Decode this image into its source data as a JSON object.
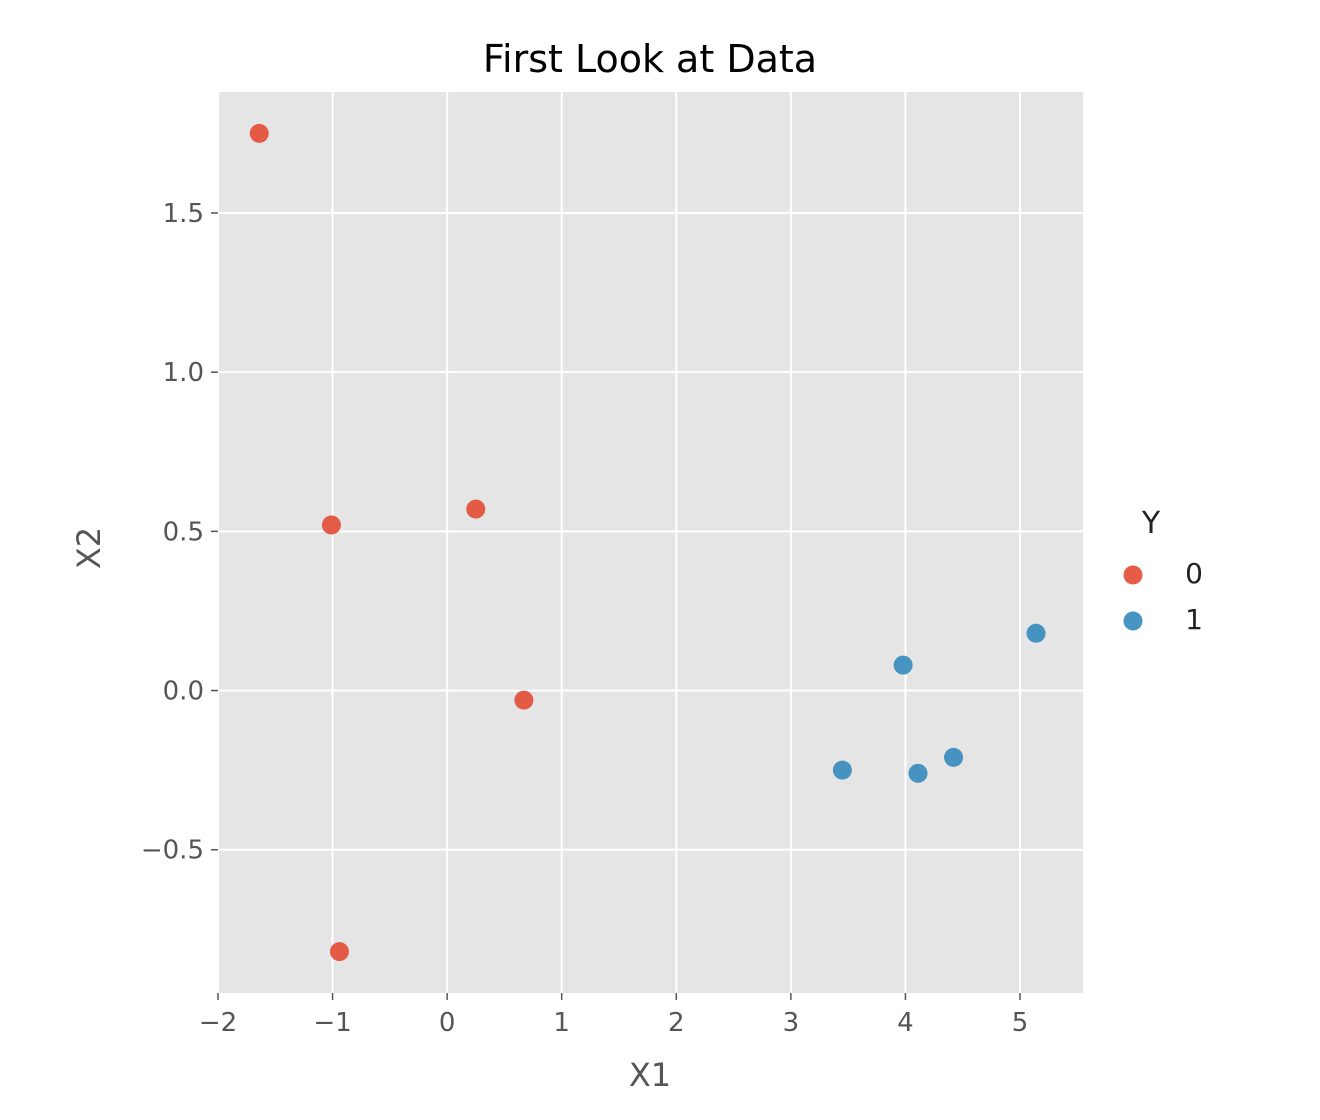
{
  "chart_data": {
    "type": "scatter",
    "title": "First Look at Data",
    "xlabel": "X1",
    "ylabel": "X2",
    "xlim": [
      -2.0,
      5.55
    ],
    "ylim": [
      -0.95,
      1.88
    ],
    "x_ticks": [
      -2,
      -1,
      0,
      1,
      2,
      3,
      4,
      5
    ],
    "x_tick_labels": [
      "−2",
      "−1",
      "0",
      "1",
      "2",
      "3",
      "4",
      "5"
    ],
    "y_ticks": [
      -0.5,
      0.0,
      0.5,
      1.0,
      1.5
    ],
    "y_tick_labels": [
      "−0.5",
      "0.0",
      "0.5",
      "1.0",
      "1.5"
    ],
    "grid": true,
    "background_color": "#e5e5e5",
    "legend": {
      "title": "Y",
      "placement": "right"
    },
    "series": [
      {
        "name": "0",
        "color": "#e24a33",
        "points": [
          {
            "x": -1.64,
            "y": 1.75
          },
          {
            "x": -1.01,
            "y": 0.52
          },
          {
            "x": 0.25,
            "y": 0.57
          },
          {
            "x": 0.67,
            "y": -0.03
          },
          {
            "x": -0.94,
            "y": -0.82
          }
        ]
      },
      {
        "name": "1",
        "color": "#348abd",
        "points": [
          {
            "x": 3.45,
            "y": -0.25
          },
          {
            "x": 3.98,
            "y": 0.08
          },
          {
            "x": 4.11,
            "y": -0.26
          },
          {
            "x": 4.42,
            "y": -0.21
          },
          {
            "x": 5.14,
            "y": 0.18
          }
        ]
      }
    ]
  }
}
